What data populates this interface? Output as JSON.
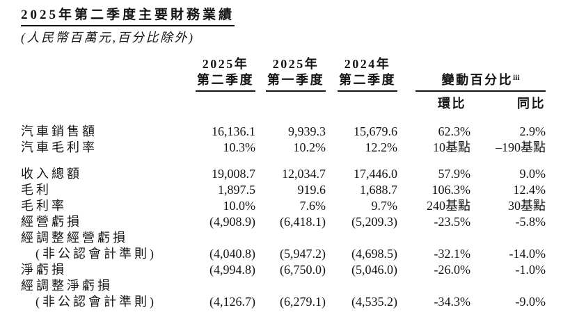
{
  "title": "2025年第二季度主要財務業績",
  "subtitle": "(人民幣百萬元,百分比除外)",
  "colors": {
    "text": "#141414",
    "background": "#ffffff",
    "rule": "#141414"
  },
  "table": {
    "quarter_headers": [
      {
        "year": "2025年",
        "quarter": "第二季度"
      },
      {
        "year": "2025年",
        "quarter": "第一季度"
      },
      {
        "year": "2024年",
        "quarter": "第二季度"
      }
    ],
    "change_header": {
      "label": "變動百分比",
      "superscript": "iii"
    },
    "sub_headers": {
      "qoq": "環比",
      "yoy": "同比"
    },
    "rows": [
      {
        "label": "汽車銷售額",
        "q2_2025": "16,136.1",
        "q1_2025": "9,939.3",
        "q2_2024": "15,679.6",
        "qoq": "62.3%",
        "yoy": "2.9%"
      },
      {
        "label": "汽車毛利率",
        "q2_2025": "10.3%",
        "q1_2025": "10.2%",
        "q2_2024": "12.2%",
        "qoq": "10基點",
        "yoy": "–190基點"
      },
      {
        "label": "收入總額",
        "q2_2025": "19,008.7",
        "q1_2025": "12,034.7",
        "q2_2024": "17,446.0",
        "qoq": "57.9%",
        "yoy": "9.0%"
      },
      {
        "label": "毛利",
        "q2_2025": "1,897.5",
        "q1_2025": "919.6",
        "q2_2024": "1,688.7",
        "qoq": "106.3%",
        "yoy": "12.4%"
      },
      {
        "label": "毛利率",
        "q2_2025": "10.0%",
        "q1_2025": "7.6%",
        "q2_2024": "9.7%",
        "qoq": "240基點",
        "yoy": "30基點"
      },
      {
        "label": "經營虧損",
        "q2_2025": "(4,908.9)",
        "q1_2025": "(6,418.1)",
        "q2_2024": "(5,209.3)",
        "qoq": "-23.5%",
        "yoy": "-5.8%"
      },
      {
        "label": "經調整經營虧損",
        "label2": "(非公認會計準則)",
        "q2_2025": "(4,040.8)",
        "q1_2025": "(5,947.2)",
        "q2_2024": "(4,698.5)",
        "qoq": "-32.1%",
        "yoy": "-14.0%"
      },
      {
        "label": "淨虧損",
        "q2_2025": "(4,994.8)",
        "q1_2025": "(6,750.0)",
        "q2_2024": "(5,046.0)",
        "qoq": "-26.0%",
        "yoy": "-1.0%"
      },
      {
        "label": "經調整淨虧損",
        "label2": "(非公認會計準則)",
        "q2_2025": "(4,126.7)",
        "q1_2025": "(6,279.1)",
        "q2_2024": "(4,535.2)",
        "qoq": "-34.3%",
        "yoy": "-9.0%"
      }
    ]
  }
}
